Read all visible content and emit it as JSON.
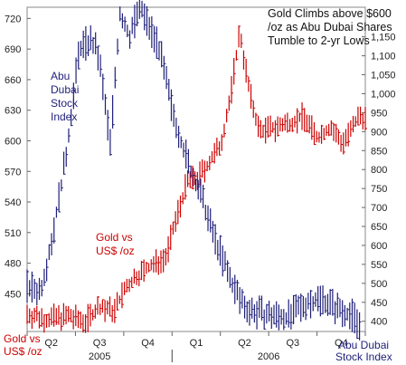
{
  "chart_data": {
    "type": "line",
    "title": "Gold Climbs above $600 /oz as Abu Dubai Shares Tumble to 2-yr Lows",
    "title_lines": [
      "Gold Climbs above $600",
      "/oz as Abu Dubai Shares",
      "Tumble to 2-yr Lows"
    ],
    "grid": false,
    "legend": "none",
    "x_axis": {
      "quarter_labels": [
        "Q2",
        "Q3",
        "Q4",
        "Q1",
        "Q2",
        "Q3",
        "Q4"
      ],
      "year_labels": [
        "2005",
        "2006"
      ],
      "range": [
        2005.25,
        2007.0
      ]
    },
    "y_left": {
      "label_lines": [
        "Gold vs",
        "US$ /oz"
      ],
      "ticks": [
        450,
        480,
        510,
        540,
        570,
        600,
        630,
        660,
        690,
        720
      ],
      "tick_labels": [
        "450",
        "480",
        "510",
        "540",
        "570",
        "600",
        "630",
        "660",
        "690",
        "720"
      ],
      "range": [
        413,
        731
      ],
      "color": "#cc0000"
    },
    "y_right": {
      "label_lines": [
        "Abu Dubai",
        "Stock Index"
      ],
      "ticks": [
        400,
        450,
        500,
        550,
        600,
        650,
        700,
        750,
        800,
        850,
        900,
        950,
        1000,
        1050,
        1100,
        1150
      ],
      "tick_labels": [
        "400",
        "450",
        "500",
        "550",
        "600",
        "650",
        "700",
        "750",
        "800",
        "850",
        "900",
        "950",
        "1,000",
        "1,050",
        "1,100",
        "1,150"
      ],
      "range": [
        373,
        1228
      ],
      "color": "#1f1f7a"
    },
    "annotations": [
      {
        "lines": [
          "Abu",
          "Dubai",
          "Stock",
          "Index"
        ],
        "color": "#1f1f7a",
        "series": "Abu Dubai Stock Index"
      },
      {
        "lines": [
          "Gold vs",
          "US$ /oz"
        ],
        "color": "#cc0000",
        "series": "Gold vs US$ /oz"
      }
    ],
    "series": [
      {
        "name": "Gold vs US$ /oz",
        "axis": "left",
        "color": "#cc0000",
        "x": [
          2005.25,
          2005.35,
          2005.45,
          2005.55,
          2005.62,
          2005.7,
          2005.75,
          2005.82,
          2005.9,
          2005.97,
          2006.03,
          2006.08,
          2006.13,
          2006.18,
          2006.25,
          2006.3,
          2006.35,
          2006.4,
          2006.45,
          2006.52,
          2006.6,
          2006.68,
          2006.75,
          2006.82,
          2006.88,
          2006.93,
          2006.97,
          2007.0
        ],
        "values": [
          430,
          425,
          428,
          423,
          437,
          433,
          452,
          468,
          478,
          487,
          530,
          560,
          563,
          575,
          595,
          640,
          708,
          648,
          610,
          612,
          617,
          624,
          603,
          613,
          598,
          610,
          625,
          622
        ]
      },
      {
        "name": "Abu Dubai Stock Index",
        "axis": "right",
        "color": "#1f1f7a",
        "x": [
          2005.25,
          2005.32,
          2005.38,
          2005.45,
          2005.52,
          2005.58,
          2005.62,
          2005.68,
          2005.73,
          2005.78,
          2005.83,
          2005.88,
          2005.93,
          2005.97,
          2006.0,
          2006.05,
          2006.1,
          2006.15,
          2006.2,
          2006.25,
          2006.3,
          2006.35,
          2006.4,
          2006.5,
          2006.6,
          2006.7,
          2006.78,
          2006.85,
          2006.92,
          2006.97
        ],
        "values": [
          490,
          480,
          620,
          830,
          1120,
          1140,
          1100,
          870,
          1210,
          1150,
          1230,
          1180,
          1130,
          1030,
          960,
          870,
          790,
          730,
          650,
          580,
          510,
          460,
          430,
          415,
          410,
          450,
          460,
          435,
          420,
          395
        ]
      }
    ]
  }
}
